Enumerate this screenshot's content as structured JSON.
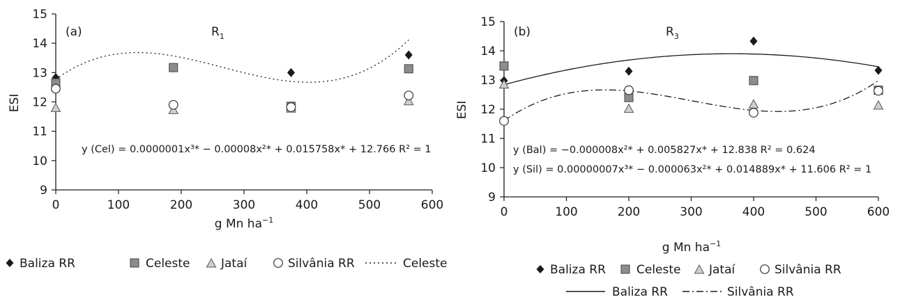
{
  "chart_data": [
    {
      "type": "scatter",
      "panel_label": "(a)",
      "title": "R",
      "title_subscript": "1",
      "xlabel_main": "g Mn ha",
      "xlabel_sup": "−1",
      "ylabel": "ESI",
      "xlim": [
        0,
        600
      ],
      "ylim": [
        9,
        15
      ],
      "xticks": [
        "0",
        "100",
        "200",
        "300",
        "400",
        "500",
        "600"
      ],
      "yticks": [
        "9",
        "10",
        "11",
        "12",
        "13",
        "14",
        "15"
      ],
      "grid": false,
      "x": [
        0,
        187.5,
        375,
        562.5
      ],
      "series": [
        {
          "name": "Baliza RR",
          "marker": "diamond",
          "color": "#1a1a1a",
          "values": [
            12.83,
            13.17,
            13.0,
            13.6
          ]
        },
        {
          "name": "Celeste",
          "marker": "square",
          "color": "#8c8c8c",
          "values": [
            12.65,
            13.17,
            11.85,
            13.13
          ]
        },
        {
          "name": "Jataí",
          "marker": "triangle",
          "color": "#cfcfcf",
          "values": [
            11.8,
            11.73,
            11.78,
            12.03
          ]
        },
        {
          "name": "Silvânia RR",
          "marker": "circle",
          "color": "#ffffff",
          "values": [
            12.45,
            11.9,
            11.82,
            12.22
          ]
        }
      ],
      "fits": [
        {
          "name": "Celeste",
          "style": "dotted",
          "equation": "y (Cel) = 0.0000001x³* − 0.00008x²* + 0.015758x* + 12.766  R² = 1",
          "coef": [
            12.766,
            0.015758,
            -8e-05,
            1e-07
          ]
        }
      ],
      "legend": [
        "Baliza RR",
        "Celeste",
        "Jataí",
        "Silvânia RR",
        "Celeste"
      ]
    },
    {
      "type": "scatter",
      "panel_label": "(b)",
      "title": "R",
      "title_subscript": "3",
      "xlabel_main": "g Mn ha",
      "xlabel_sup": "−1",
      "ylabel": "ESI",
      "xlim": [
        0,
        600
      ],
      "ylim": [
        9,
        15
      ],
      "xticks": [
        "0",
        "100",
        "200",
        "300",
        "400",
        "500",
        "600"
      ],
      "yticks": [
        "9",
        "10",
        "11",
        "12",
        "13",
        "14",
        "15"
      ],
      "grid": false,
      "x": [
        0,
        200,
        400,
        600
      ],
      "series": [
        {
          "name": "Baliza RR",
          "marker": "diamond",
          "color": "#1a1a1a",
          "values": [
            12.98,
            13.3,
            14.33,
            13.33
          ]
        },
        {
          "name": "Celeste",
          "marker": "square",
          "color": "#8c8c8c",
          "values": [
            13.48,
            12.4,
            12.98,
            12.65
          ]
        },
        {
          "name": "Jataí",
          "marker": "triangle",
          "color": "#cfcfcf",
          "values": [
            12.85,
            12.02,
            12.17,
            12.13
          ]
        },
        {
          "name": "Silvânia RR",
          "marker": "circle",
          "color": "#ffffff",
          "values": [
            11.6,
            12.65,
            11.88,
            12.63
          ]
        }
      ],
      "fits": [
        {
          "name": "Baliza RR",
          "style": "solid",
          "equation": "y (Bal) = −0.000008x²* + 0.005827x* + 12.838  R² = 0.624",
          "coef": [
            12.838,
            0.005827,
            -8e-06,
            0
          ]
        },
        {
          "name": "Silvânia RR",
          "style": "dashdot",
          "equation": "y (Sil) = 0.00000007x³* − 0.000063x²* + 0.014889x* + 11.606  R² = 1",
          "coef": [
            11.606,
            0.014889,
            -6.3e-05,
            7e-08
          ]
        }
      ],
      "legend": [
        "Baliza RR",
        "Celeste",
        "Jataí",
        "Silvânia RR",
        "Baliza RR",
        "Silvânia RR"
      ]
    }
  ]
}
